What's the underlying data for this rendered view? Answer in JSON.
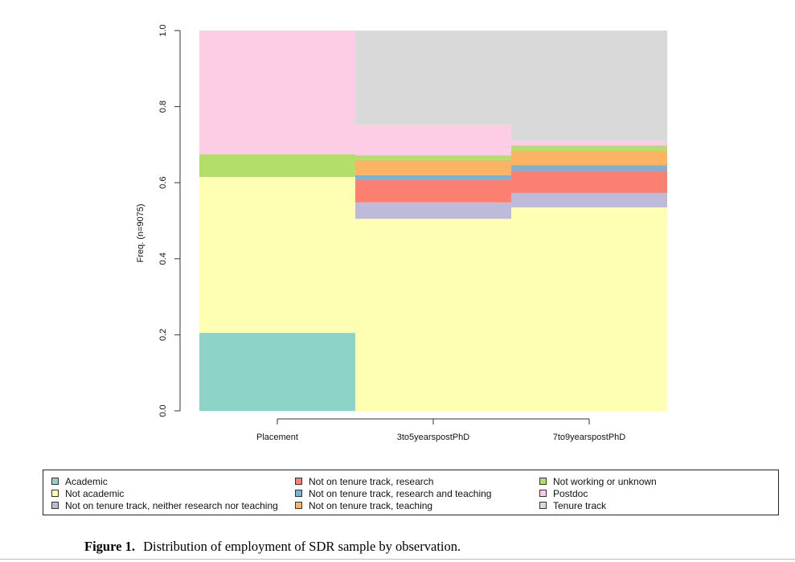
{
  "chart_data": {
    "type": "bar",
    "stacked": true,
    "ylabel": "Freq. (n=9075)",
    "ylim": [
      0,
      1
    ],
    "yticks": [
      "0.0",
      "0.2",
      "0.4",
      "0.6",
      "0.8",
      "1.0"
    ],
    "categories": [
      "Placement",
      "3to5yearspostPhD",
      "7to9yearspostPhD"
    ],
    "series": [
      {
        "name": "Academic",
        "color": "#8dd3c7",
        "values": [
          0.205,
          0.0,
          0.0
        ]
      },
      {
        "name": "Not academic",
        "color": "#ffffb3",
        "values": [
          0.41,
          0.505,
          0.535
        ]
      },
      {
        "name": "Not on tenure track, neither research nor teaching",
        "color": "#bebada",
        "values": [
          0.0,
          0.043,
          0.038
        ]
      },
      {
        "name": "Not on tenure track, research",
        "color": "#fb8072",
        "values": [
          0.0,
          0.06,
          0.058
        ]
      },
      {
        "name": "Not on tenure track, research and teaching",
        "color": "#80b1d3",
        "values": [
          0.0,
          0.012,
          0.015
        ]
      },
      {
        "name": "Not on tenure track, teaching",
        "color": "#fdb462",
        "values": [
          0.0,
          0.04,
          0.037
        ]
      },
      {
        "name": "Not working or unknown",
        "color": "#b3de69",
        "values": [
          0.06,
          0.012,
          0.015
        ]
      },
      {
        "name": "Postdoc",
        "color": "#fccde5",
        "values": [
          0.325,
          0.08,
          0.012
        ]
      },
      {
        "name": "Tenure track",
        "color": "#d9d9d9",
        "values": [
          0.0,
          0.248,
          0.29
        ]
      }
    ],
    "legend_position": "bottom"
  },
  "caption": {
    "figure_label": "Figure 1.",
    "text": "Distribution of employment of SDR sample by observation."
  }
}
